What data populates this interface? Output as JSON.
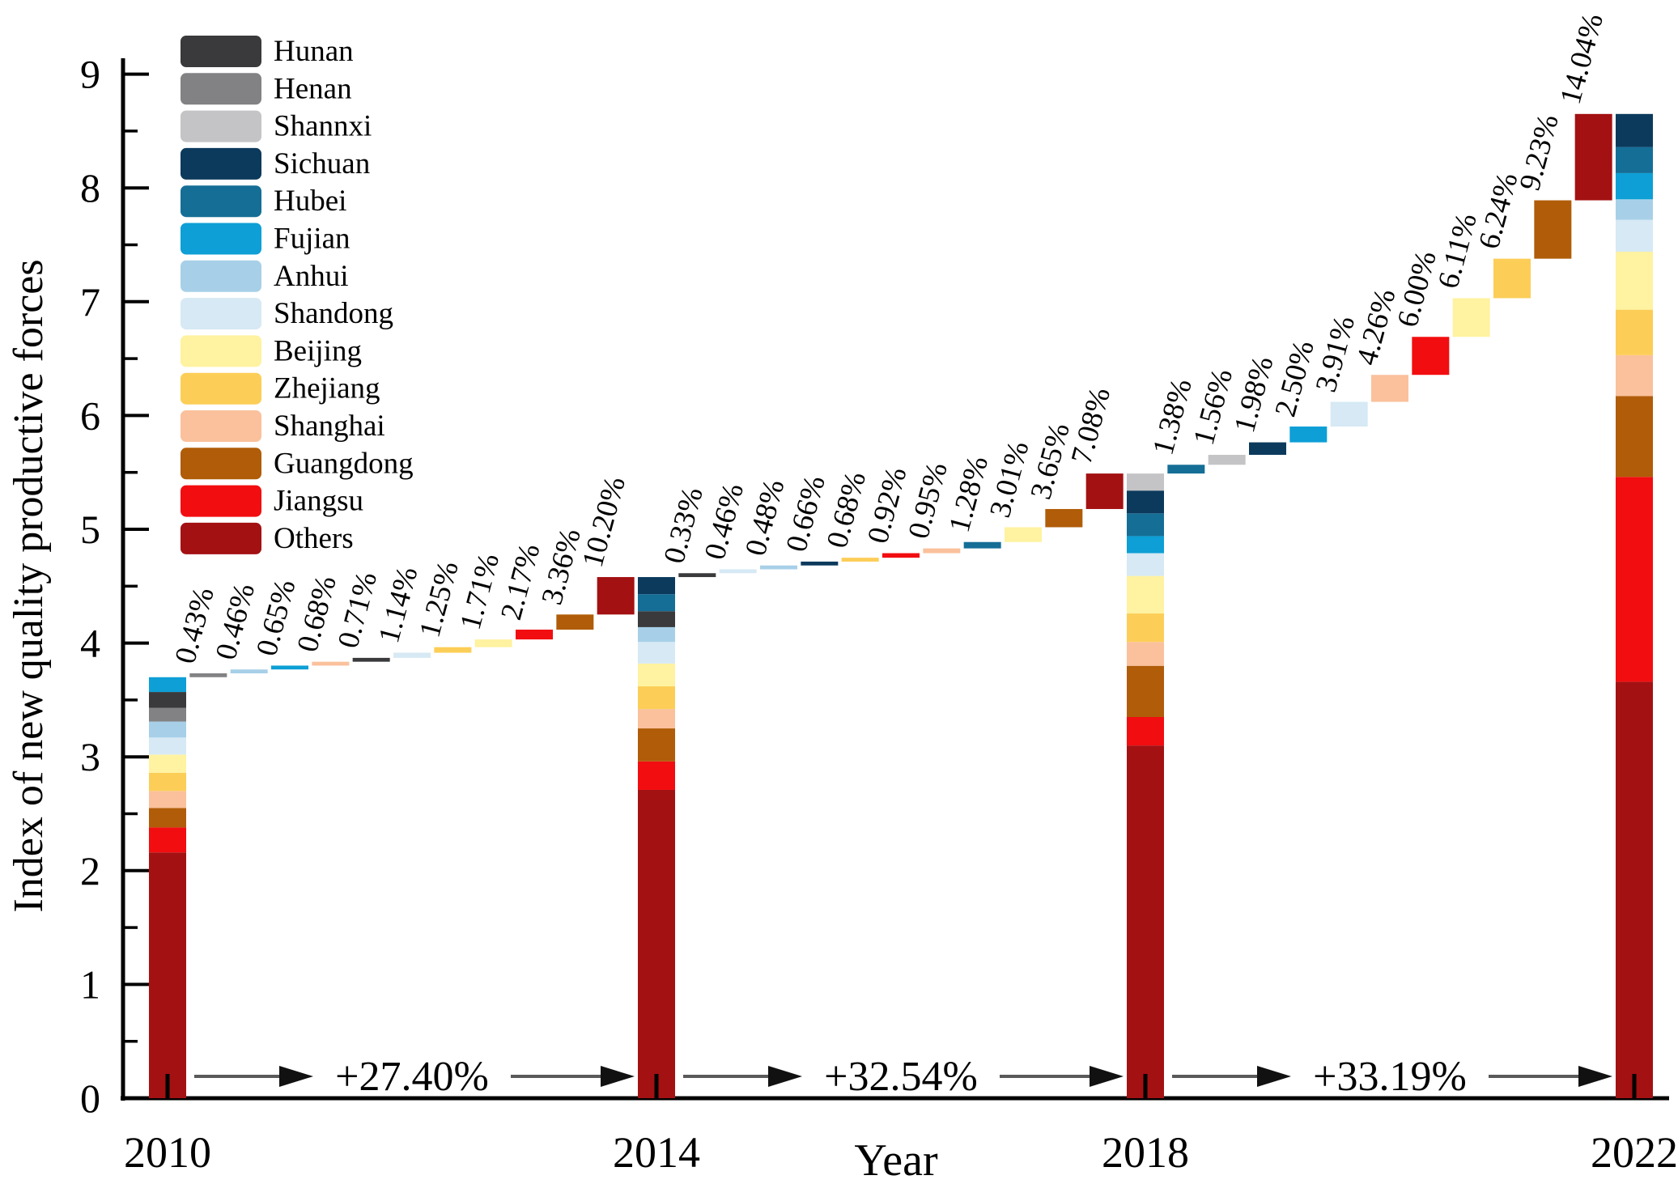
{
  "y_axis": {
    "label": "Index of new quality productive forces",
    "min": 0,
    "max": 9,
    "major_tick_step": 1,
    "minor_tick_step": 0.5,
    "tick_labels": [
      "0",
      "1",
      "2",
      "3",
      "4",
      "5",
      "6",
      "7",
      "8",
      "9"
    ]
  },
  "x_axis": {
    "label": "Year",
    "categories": [
      "2010",
      "2014",
      "2018",
      "2022"
    ]
  },
  "legend": {
    "items": [
      {
        "name": "Hunan",
        "color": "#3a3a3c"
      },
      {
        "name": "Henan",
        "color": "#828285"
      },
      {
        "name": "Shannxi",
        "color": "#c4c4c6"
      },
      {
        "name": "Sichuan",
        "color": "#0c3a5c"
      },
      {
        "name": "Hubei",
        "color": "#156e96"
      },
      {
        "name": "Fujian",
        "color": "#0d9fd6"
      },
      {
        "name": "Anhui",
        "color": "#a7d0e8"
      },
      {
        "name": "Shandong",
        "color": "#d6e9f4"
      },
      {
        "name": "Beijing",
        "color": "#fff2a0"
      },
      {
        "name": "Zhejiang",
        "color": "#fcce57"
      },
      {
        "name": "Shanghai",
        "color": "#fac19c"
      },
      {
        "name": "Guangdong",
        "color": "#b05c08"
      },
      {
        "name": "Jiangsu",
        "color": "#f20d10"
      },
      {
        "name": "Others",
        "color": "#a31113"
      }
    ]
  },
  "chart_data": {
    "type": "bar",
    "subtype": "stacked-waterfall",
    "title": "",
    "xlabel": "Year",
    "ylabel": "Index of new quality productive forces",
    "ylim": [
      0,
      9
    ],
    "years": [
      "2010",
      "2014",
      "2018",
      "2022"
    ],
    "totals": {
      "2010": 3.7,
      "2014": 4.58,
      "2018": 5.49,
      "2022": 8.65
    },
    "growth_arrows": [
      {
        "from": "2010",
        "to": "2014",
        "label": "+27.40%"
      },
      {
        "from": "2014",
        "to": "2018",
        "label": "+32.54%"
      },
      {
        "from": "2018",
        "to": "2022",
        "label": "+33.19%"
      }
    ],
    "bars": [
      {
        "year": "2010",
        "segments": [
          {
            "province": "Others",
            "from": 0,
            "to": 2.16
          },
          {
            "province": "Jiangsu",
            "from": 2.16,
            "to": 2.38
          },
          {
            "province": "Guangdong",
            "from": 2.38,
            "to": 2.55
          },
          {
            "province": "Shanghai",
            "from": 2.55,
            "to": 2.7
          },
          {
            "province": "Zhejiang",
            "from": 2.7,
            "to": 2.86
          },
          {
            "province": "Beijing",
            "from": 2.86,
            "to": 3.02
          },
          {
            "province": "Shandong",
            "from": 3.02,
            "to": 3.17
          },
          {
            "province": "Anhui",
            "from": 3.17,
            "to": 3.31
          },
          {
            "province": "Henan",
            "from": 3.31,
            "to": 3.43
          },
          {
            "province": "Hunan",
            "from": 3.43,
            "to": 3.57
          },
          {
            "province": "Fujian",
            "from": 3.57,
            "to": 3.7
          }
        ]
      },
      {
        "year": "2014",
        "segments": [
          {
            "province": "Others",
            "from": 0,
            "to": 2.71
          },
          {
            "province": "Jiangsu",
            "from": 2.71,
            "to": 2.96
          },
          {
            "province": "Guangdong",
            "from": 2.96,
            "to": 3.25
          },
          {
            "province": "Shanghai",
            "from": 3.25,
            "to": 3.42
          },
          {
            "province": "Zhejiang",
            "from": 3.42,
            "to": 3.62
          },
          {
            "province": "Beijing",
            "from": 3.62,
            "to": 3.82
          },
          {
            "province": "Shandong",
            "from": 3.82,
            "to": 4.01
          },
          {
            "province": "Anhui",
            "from": 4.01,
            "to": 4.14
          },
          {
            "province": "Hunan",
            "from": 4.14,
            "to": 4.28
          },
          {
            "province": "Hubei",
            "from": 4.28,
            "to": 4.43
          },
          {
            "province": "Sichuan",
            "from": 4.43,
            "to": 4.58
          }
        ]
      },
      {
        "year": "2018",
        "segments": [
          {
            "province": "Others",
            "from": 0,
            "to": 3.1
          },
          {
            "province": "Jiangsu",
            "from": 3.1,
            "to": 3.35
          },
          {
            "province": "Guangdong",
            "from": 3.35,
            "to": 3.8
          },
          {
            "province": "Shanghai",
            "from": 3.8,
            "to": 4.01
          },
          {
            "province": "Zhejiang",
            "from": 4.01,
            "to": 4.26
          },
          {
            "province": "Beijing",
            "from": 4.26,
            "to": 4.59
          },
          {
            "province": "Shandong",
            "from": 4.59,
            "to": 4.79
          },
          {
            "province": "Fujian",
            "from": 4.79,
            "to": 4.94
          },
          {
            "province": "Hubei",
            "from": 4.94,
            "to": 5.14
          },
          {
            "province": "Sichuan",
            "from": 5.14,
            "to": 5.34
          },
          {
            "province": "Shannxi",
            "from": 5.34,
            "to": 5.49
          }
        ]
      },
      {
        "year": "2022",
        "segments": [
          {
            "province": "Others",
            "from": 0,
            "to": 3.66
          },
          {
            "province": "Jiangsu",
            "from": 3.66,
            "to": 5.46
          },
          {
            "province": "Guangdong",
            "from": 5.46,
            "to": 6.17
          },
          {
            "province": "Shanghai",
            "from": 6.17,
            "to": 6.53
          },
          {
            "province": "Zhejiang",
            "from": 6.53,
            "to": 6.93
          },
          {
            "province": "Beijing",
            "from": 6.93,
            "to": 7.44
          },
          {
            "province": "Shandong",
            "from": 7.44,
            "to": 7.72
          },
          {
            "province": "Anhui",
            "from": 7.72,
            "to": 7.9
          },
          {
            "province": "Fujian",
            "from": 7.9,
            "to": 8.13
          },
          {
            "province": "Hubei",
            "from": 8.13,
            "to": 8.36
          },
          {
            "province": "Sichuan",
            "from": 8.36,
            "to": 8.65
          }
        ]
      }
    ],
    "increments": [
      {
        "from": "2010",
        "to": "2014",
        "floats": [
          {
            "province": "Henan",
            "label": "0.43%",
            "bottom": 3.7,
            "top": 3.734
          },
          {
            "province": "Anhui",
            "label": "0.46%",
            "bottom": 3.734,
            "top": 3.768
          },
          {
            "province": "Fujian",
            "label": "0.65%",
            "bottom": 3.768,
            "top": 3.802
          },
          {
            "province": "Shanghai",
            "label": "0.68%",
            "bottom": 3.802,
            "top": 3.836
          },
          {
            "province": "Hunan",
            "label": "0.71%",
            "bottom": 3.836,
            "top": 3.87
          },
          {
            "province": "Shandong",
            "label": "1.14%",
            "bottom": 3.87,
            "top": 3.915
          },
          {
            "province": "Zhejiang",
            "label": "1.25%",
            "bottom": 3.915,
            "top": 3.964
          },
          {
            "province": "Beijing",
            "label": "1.71%",
            "bottom": 3.964,
            "top": 4.032
          },
          {
            "province": "Jiangsu",
            "label": "2.17%",
            "bottom": 4.032,
            "top": 4.118
          },
          {
            "province": "Guangdong",
            "label": "3.36%",
            "bottom": 4.118,
            "top": 4.251
          },
          {
            "province": "Others",
            "label": "10.20%",
            "bottom": 4.251,
            "top": 4.58
          }
        ]
      },
      {
        "from": "2014",
        "to": "2018",
        "floats": [
          {
            "province": "Hunan",
            "label": "0.33%",
            "bottom": 4.58,
            "top": 4.614
          },
          {
            "province": "Shandong",
            "label": "0.46%",
            "bottom": 4.614,
            "top": 4.648
          },
          {
            "province": "Anhui",
            "label": "0.48%",
            "bottom": 4.648,
            "top": 4.682
          },
          {
            "province": "Sichuan",
            "label": "0.66%",
            "bottom": 4.682,
            "top": 4.716
          },
          {
            "province": "Zhejiang",
            "label": "0.68%",
            "bottom": 4.716,
            "top": 4.75
          },
          {
            "province": "Jiangsu",
            "label": "0.92%",
            "bottom": 4.75,
            "top": 4.79
          },
          {
            "province": "Shanghai",
            "label": "0.95%",
            "bottom": 4.79,
            "top": 4.832
          },
          {
            "province": "Hubei",
            "label": "1.28%",
            "bottom": 4.832,
            "top": 4.888
          },
          {
            "province": "Beijing",
            "label": "3.01%",
            "bottom": 4.888,
            "top": 5.018
          },
          {
            "province": "Guangdong",
            "label": "3.65%",
            "bottom": 5.018,
            "top": 5.178
          },
          {
            "province": "Others",
            "label": "7.08%",
            "bottom": 5.178,
            "top": 5.49
          }
        ]
      },
      {
        "from": "2018",
        "to": "2022",
        "floats": [
          {
            "province": "Hubei",
            "label": "1.38%",
            "bottom": 5.49,
            "top": 5.567
          },
          {
            "province": "Shannxi",
            "label": "1.56%",
            "bottom": 5.567,
            "top": 5.654
          },
          {
            "province": "Sichuan",
            "label": "1.98%",
            "bottom": 5.654,
            "top": 5.764
          },
          {
            "province": "Fujian",
            "label": "2.50%",
            "bottom": 5.764,
            "top": 5.903
          },
          {
            "province": "Shandong",
            "label": "3.91%",
            "bottom": 5.903,
            "top": 6.12
          },
          {
            "province": "Shanghai",
            "label": "4.26%",
            "bottom": 6.12,
            "top": 6.357
          },
          {
            "province": "Jiangsu",
            "label": "6.00%",
            "bottom": 6.357,
            "top": 6.691
          },
          {
            "province": "Beijing",
            "label": "6.11%",
            "bottom": 6.691,
            "top": 7.031
          },
          {
            "province": "Zhejiang",
            "label": "6.24%",
            "bottom": 7.031,
            "top": 7.378
          },
          {
            "province": "Guangdong",
            "label": "9.23%",
            "bottom": 7.378,
            "top": 7.891
          },
          {
            "province": "Others",
            "label": "14.04%",
            "bottom": 7.891,
            "top": 8.65
          }
        ]
      }
    ]
  }
}
